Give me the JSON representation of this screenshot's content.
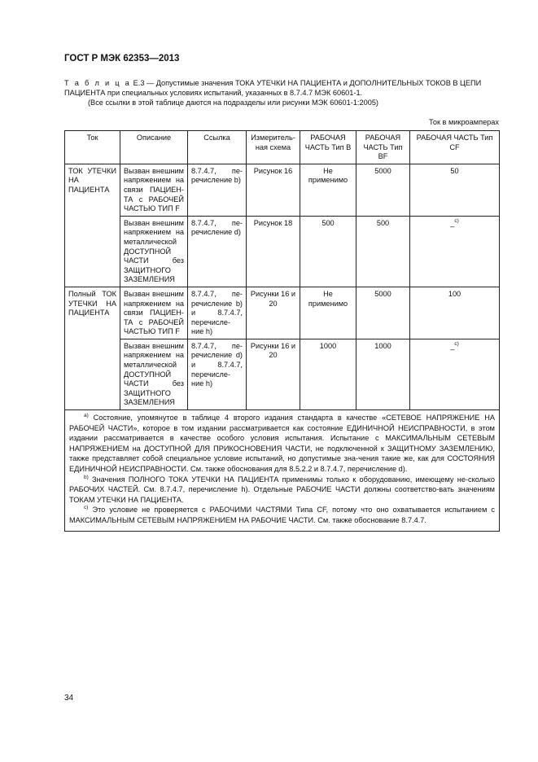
{
  "header": "ГОСТ Р МЭК 62353—2013",
  "caption": {
    "label": "Т а б л и ц а",
    "text": "Е.3 — Допустимые значения ТОКА УТЕЧКИ НА ПАЦИЕНТА и ДОПОЛНИТЕЛЬНЫХ ТОКОВ В ЦЕПИ ПАЦИЕНТА при специальных условиях испытаний, указанных в 8.7.4.7 МЭК 60601-1.",
    "note": "(Все ссылки в этой таблице даются на подразделы или рисунки МЭК 60601-1:2005)"
  },
  "units": "Ток в микроамперах",
  "table": {
    "headers": [
      "Ток",
      "Описание",
      "Ссылка",
      "Измеритель-ная схема",
      "РАБОЧАЯ ЧАСТЬ Тип В",
      "РАБОЧАЯ ЧАСТЬ Тип BF",
      "РАБОЧАЯ ЧАСТЬ Тип CF"
    ],
    "groups": [
      {
        "current": "ТОК УТЕЧКИ НА ПАЦИЕНТА",
        "rows": [
          {
            "description": "Вызван внешним напряжением на связи ПАЦИЕН-ТА с РАБОЧЕЙ ЧАСТЬЮ ТИП F",
            "reference": "8.7.4.7, пе-речисление b)",
            "scheme": "Рисунок 16",
            "type_b": "Не применимо",
            "type_bf": "5000",
            "type_cf": "50",
            "type_cf_note": ""
          },
          {
            "description": "Вызван внешним напряжением на металлической ДОСТУПНОЙ ЧАСТИ без ЗАЩИТНОГО ЗАЗЕМЛЕНИЯ",
            "reference": "8.7.4.7, пе-речисление d)",
            "scheme": "Рисунок 18",
            "type_b": "500",
            "type_bf": "500",
            "type_cf": "_",
            "type_cf_note": "c)"
          }
        ]
      },
      {
        "current": "Полный ТОК УТЕЧКИ НА ПАЦИЕНТА",
        "rows": [
          {
            "description": "Вызван внешним напряжением на связи ПАЦИЕН-ТА с РАБОЧЕЙ ЧАСТЬЮ ТИП F",
            "reference": "8.7.4.7, пе-речисление b) и 8.7.4.7, перечисле-ние h)",
            "scheme": "Рисунки 16 и 20",
            "type_b": "Не применимо",
            "type_bf": "5000",
            "type_cf": "100",
            "type_cf_note": ""
          },
          {
            "description": "Вызван внешним напряжением на металлической ДОСТУПНОЙ ЧАСТИ без ЗАЩИТНОГО ЗАЗЕМЛЕНИЯ",
            "reference": "8.7.4.7, пе-речисление d) и 8.7.4.7, перечисле-ние h)",
            "scheme": "Рисунки 16 и 20",
            "type_b": "1000",
            "type_bf": "1000",
            "type_cf": "_",
            "type_cf_note": "c)"
          }
        ]
      }
    ],
    "footnotes": [
      {
        "mark": "a)",
        "text": "Состояние, упомянутое в таблице 4 второго издания стандарта в качестве «СЕТЕВОЕ НАПРЯЖЕНИЕ НА РАБОЧЕЙ ЧАСТИ», которое в том издании рассматривается как состояние ЕДИНИЧНОЙ НЕИСПРАВНОСТИ, в этом издании рассматривается в качестве особого условия испытания. Испытание с МАКСИМАЛЬНЫМ СЕТЕВЫМ НАПРЯЖЕНИЕМ на ДОСТУПНОЙ ДЛЯ ПРИКОСНОВЕНИЯ ЧАСТИ, не подключенной к ЗАЩИТНОМУ ЗАЗЕМЛЕНИЮ, также представляет собой специальное условие испытаний, но допустимые зна-чения такие же, как для СОСТОЯНИЯ ЕДИНИЧНОЙ НЕИСПРАВНОСТИ. См. также обоснования для 8.5.2.2 и 8.7.4.7, перечисление d)."
      },
      {
        "mark": "b)",
        "text": "Значения ПОЛНОГО ТОКА УТЕЧКИ НА ПАЦИЕНТА применимы только к оборудованию, имеющему не-сколько РАБОЧИХ ЧАСТЕЙ. См. 8.7.4.7, перечисление h). Отдельные РАБОЧИЕ ЧАСТИ должны соответство-вать значениям ТОКАМ УТЕЧКИ НА ПАЦИЕНТА."
      },
      {
        "mark": "c)",
        "text": "Это условие не проверяется с РАБОЧИМИ ЧАСТЯМИ Типа CF, потому что оно охватывается испытанием с МАКСИМАЛЬНЫМ СЕТЕВЫМ НАПРЯЖЕНИЕМ НА РАБОЧИЕ ЧАСТИ. См. также обоснование 8.7.4.7."
      }
    ]
  },
  "page_number": "34"
}
